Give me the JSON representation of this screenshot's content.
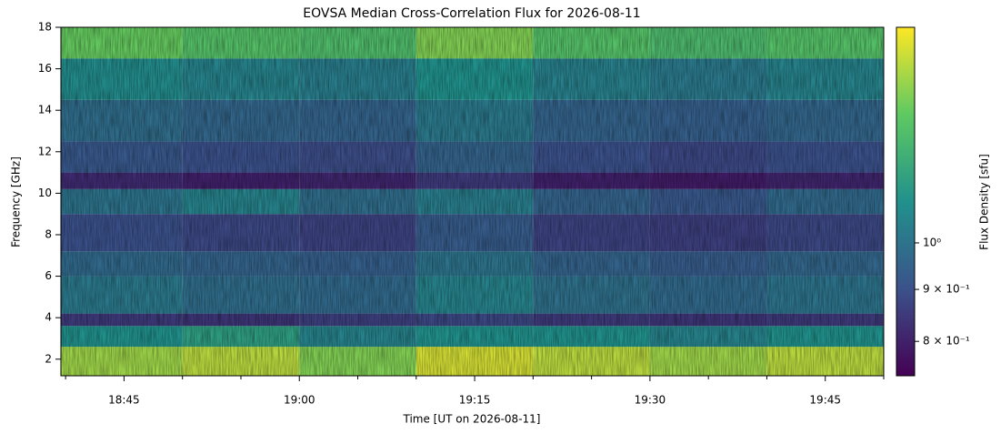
{
  "chart_data": {
    "type": "heatmap",
    "title": "EOVSA Median Cross-Correlation Flux for 2026-08-11",
    "xlabel": "Time [UT on 2026-08-11]",
    "ylabel": "Frequency [GHz]",
    "colorbar_label": "Flux Density [sfu]",
    "colormap": "viridis",
    "color_log": true,
    "x_edges": [
      1119.6,
      1130,
      1140,
      1150,
      1160,
      1170,
      1180,
      1190
    ],
    "y_edges": [
      1.2,
      2.6,
      3.6,
      4.2,
      6.0,
      7.2,
      9.0,
      10.2,
      11.0,
      12.5,
      14.5,
      16.5,
      18
    ],
    "values": [
      [
        1.45,
        1.5,
        1.4,
        1.55,
        1.5,
        1.45,
        1.5
      ],
      [
        1.1,
        1.15,
        1.05,
        1.1,
        1.1,
        1.05,
        1.1
      ],
      [
        0.85,
        0.84,
        0.86,
        0.88,
        0.85,
        0.84,
        0.85
      ],
      [
        1.02,
        0.98,
        0.97,
        1.05,
        0.99,
        0.97,
        1.0
      ],
      [
        0.97,
        0.95,
        0.94,
        1.0,
        0.95,
        0.93,
        0.96
      ],
      [
        0.9,
        0.88,
        0.87,
        0.93,
        0.87,
        0.86,
        0.88
      ],
      [
        1.0,
        1.05,
        0.98,
        1.03,
        0.95,
        0.92,
        0.97
      ],
      [
        0.82,
        0.8,
        0.81,
        0.85,
        0.8,
        0.79,
        0.81
      ],
      [
        0.92,
        0.9,
        0.89,
        0.95,
        0.9,
        0.88,
        0.9
      ],
      [
        0.98,
        0.96,
        0.95,
        1.02,
        0.95,
        0.94,
        0.96
      ],
      [
        1.08,
        1.05,
        1.03,
        1.1,
        1.04,
        1.02,
        1.05
      ],
      [
        1.35,
        1.3,
        1.28,
        1.4,
        1.3,
        1.27,
        1.3
      ]
    ],
    "xlim": [
      1119.6,
      1190
    ],
    "ylim": [
      1.2,
      18
    ],
    "xticks": [
      {
        "value": 1125,
        "label": "18:45"
      },
      {
        "value": 1140,
        "label": "19:00"
      },
      {
        "value": 1155,
        "label": "19:15"
      },
      {
        "value": 1170,
        "label": "19:30"
      },
      {
        "value": 1185,
        "label": "19:45"
      }
    ],
    "xminorticks": [
      1120,
      1130,
      1135,
      1145,
      1150,
      1160,
      1165,
      1175,
      1180,
      1190
    ],
    "yticks": [
      2,
      4,
      6,
      8,
      10,
      12,
      14,
      16,
      18
    ],
    "clim": [
      0.74,
      1.63
    ],
    "cticks": [
      {
        "value": 0.8,
        "label": "8 × 10⁻¹"
      },
      {
        "value": 0.9,
        "label": "9 × 10⁻¹"
      },
      {
        "value": 1,
        "label": "10⁰"
      }
    ]
  }
}
